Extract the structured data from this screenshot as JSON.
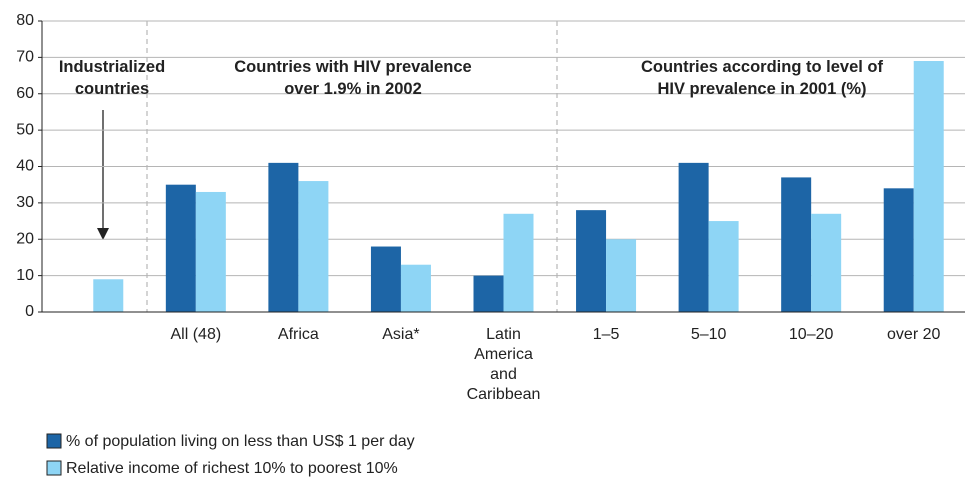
{
  "chart_data": {
    "type": "bar",
    "categories": [
      null,
      "All (48)",
      "Africa",
      "Asia*",
      "Latin\nAmerica\nand\nCaribbean",
      "1–5",
      "5–10",
      "10–20",
      "over 20"
    ],
    "series": [
      {
        "name": "% of population living on less than US$ 1 per day",
        "color": "#1d65a6",
        "values": [
          null,
          35,
          41,
          18,
          10,
          28,
          41,
          37,
          34
        ]
      },
      {
        "name": "Relative income of richest 10% to poorest 10%",
        "color": "#8ed5f5",
        "values": [
          9,
          33,
          36,
          13,
          27,
          20,
          25,
          27,
          69
        ]
      }
    ],
    "annotations": [
      "Industrialized\ncountries",
      "Countries with HIV prevalence\nover 1.9% in 2002",
      "Countries according to level of\nHIV prevalence in 2001 (%)"
    ],
    "ylim": [
      0,
      80
    ],
    "yticks": [
      0,
      10,
      20,
      30,
      40,
      50,
      60,
      70,
      80
    ],
    "grid": true
  }
}
